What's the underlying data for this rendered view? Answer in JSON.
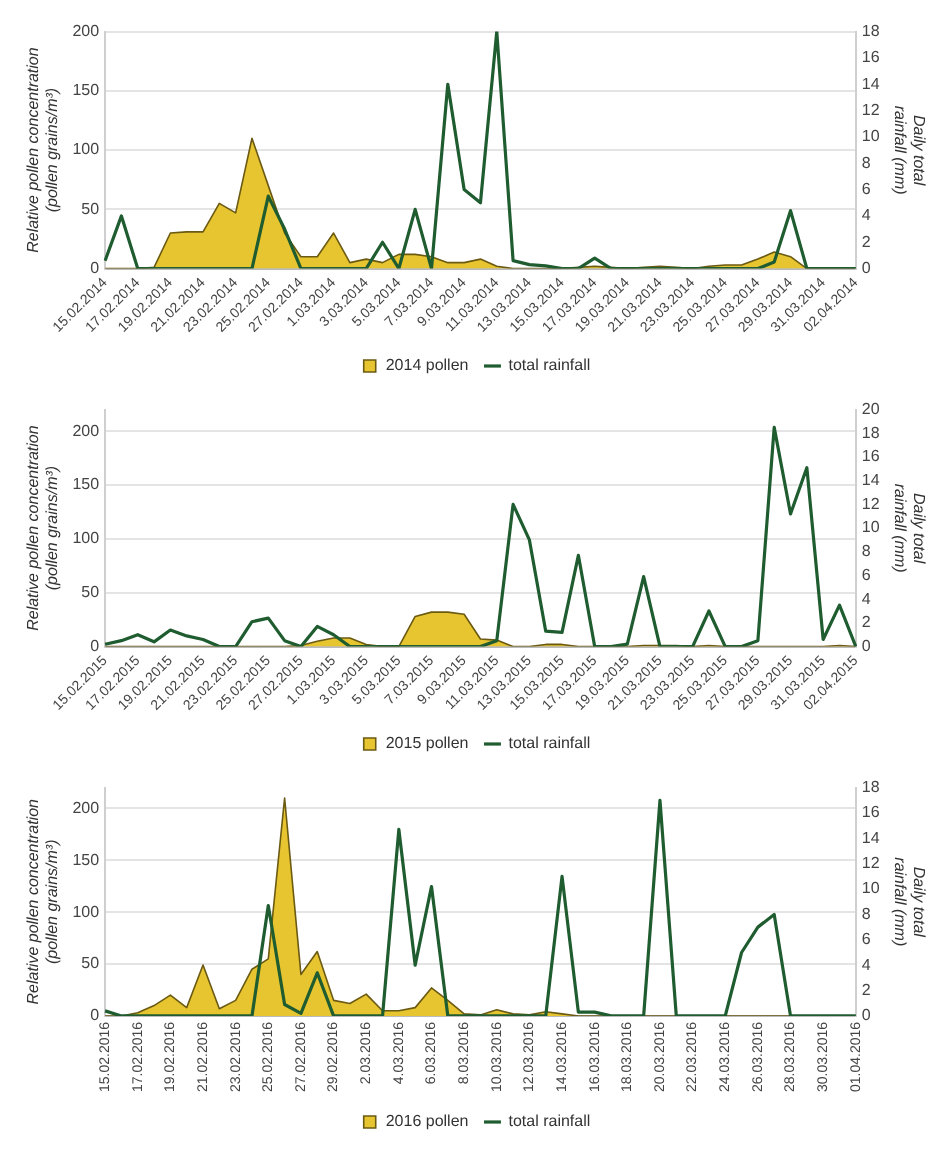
{
  "chart_data": [
    {
      "type": "area",
      "categories": [
        "15.02.2014",
        null,
        "17.02.2014",
        null,
        "19.02.2014",
        null,
        "21.02.2014",
        null,
        "23.02.2014",
        null,
        "25.02.2014",
        null,
        "27.02.2014",
        null,
        "1.03.2014",
        null,
        "3.03.2014",
        null,
        "5.03.2014",
        null,
        "7.03.2014",
        null,
        "9.03.2014",
        null,
        "11.03.2014",
        null,
        "13.03.2014",
        null,
        "15.03.2014",
        null,
        "17.03.2014",
        null,
        "19.03.2014",
        null,
        "21.03.2014",
        null,
        "23.03.2014",
        null,
        "25.03.2014",
        null,
        "27.03.2014",
        null,
        "29.03.2014",
        null,
        "31.03.2014",
        null,
        "02.04.2014"
      ],
      "series": [
        {
          "name": "2014 pollen",
          "color": "#e6c531",
          "values": [
            0,
            0,
            0,
            1,
            30,
            31,
            31,
            55,
            47,
            110,
            70,
            30,
            10,
            10,
            30,
            5,
            8,
            5,
            12,
            12,
            10,
            5,
            5,
            8,
            2,
            0,
            0,
            0,
            0,
            1,
            2,
            1,
            0,
            1,
            2,
            1,
            0,
            2,
            3,
            3,
            8,
            14,
            10,
            0,
            0,
            0,
            0
          ]
        },
        {
          "name": "total rainfall",
          "type": "line",
          "axis": "y2",
          "color": "#1f5c30",
          "values": [
            0.6,
            4,
            0,
            0,
            0,
            0,
            0,
            0,
            0,
            0,
            5.5,
            3,
            0,
            0,
            0,
            0,
            0,
            2,
            0,
            4.5,
            0,
            14,
            6,
            5,
            18,
            0.6,
            0.3,
            0.2,
            0,
            0,
            0.8,
            0,
            0,
            0,
            0,
            0,
            0,
            0,
            0,
            0,
            0,
            0.5,
            4.4,
            0,
            0,
            0,
            0
          ]
        }
      ],
      "ylabel": "Relative pollen concentration (pollen grains/m³)",
      "y2label": "Daily total rainfall (mm)",
      "ylim": [
        0,
        200
      ],
      "yticks": [
        0,
        50,
        100,
        150,
        200
      ],
      "y2lim": [
        0,
        18
      ],
      "y2ticks": [
        0,
        2,
        4,
        6,
        8,
        10,
        12,
        14,
        16,
        18
      ],
      "grid": "y",
      "legend": "bottom",
      "marker": "none"
    },
    {
      "type": "area",
      "categories": [
        "15.02.2015",
        null,
        "17.02.2015",
        null,
        "19.02.2015",
        null,
        "21.02.2015",
        null,
        "23.02.2015",
        null,
        "25.02.2015",
        null,
        "27.02.2015",
        null,
        "1.03.2015",
        null,
        "3.03.2015",
        null,
        "5.03.2015",
        null,
        "7.03.2015",
        null,
        "9.03.2015",
        null,
        "11.03.2015",
        null,
        "13.03.2015",
        null,
        "15.03.2015",
        null,
        "17.03.2015",
        null,
        "19.03.2015",
        null,
        "21.03.2015",
        null,
        "23.03.2015",
        null,
        "25.03.2015",
        null,
        "27.03.2015",
        null,
        "29.03.2015",
        null,
        "31.03.2015",
        null,
        "02.04.2015"
      ],
      "series": [
        {
          "name": "2015 pollen",
          "color": "#e6c531",
          "values": [
            0,
            0,
            0,
            0,
            0,
            0,
            0,
            0,
            0,
            0,
            0,
            0,
            1,
            5,
            8,
            8,
            2,
            0,
            0,
            28,
            32,
            32,
            30,
            7,
            6,
            0,
            0,
            2,
            2,
            0,
            0,
            0,
            0,
            1,
            1,
            1,
            0,
            1,
            0,
            0,
            0,
            0,
            0,
            0,
            0,
            1,
            0
          ]
        },
        {
          "name": "total rainfall",
          "type": "line",
          "axis": "y2",
          "color": "#1f5c30",
          "values": [
            0.2,
            0.5,
            1,
            0.4,
            1.4,
            0.9,
            0.6,
            0,
            0,
            2.1,
            2.4,
            0.5,
            0,
            1.7,
            1,
            0,
            0,
            0,
            0,
            0,
            0,
            0,
            0,
            0,
            0.5,
            12,
            9,
            1.3,
            1.2,
            7.7,
            0,
            0,
            0.2,
            5.9,
            0,
            0,
            0,
            3,
            0,
            0,
            0.5,
            18.5,
            11.2,
            15.1,
            0.6,
            3.5,
            0
          ]
        }
      ],
      "ylabel": "Relative pollen concentration (pollen grains/m³)",
      "y2label": "Daily total rainfall (mm)",
      "ylim": [
        0,
        220
      ],
      "yticks": [
        0,
        50,
        100,
        150,
        200
      ],
      "y2lim": [
        0,
        20
      ],
      "y2ticks": [
        0,
        2,
        4,
        6,
        8,
        10,
        12,
        14,
        16,
        18,
        20
      ],
      "grid": "y",
      "legend": "bottom",
      "marker": "none"
    },
    {
      "type": "area",
      "categories": [
        "15.02.2016",
        null,
        "17.02.2016",
        null,
        "19.02.2016",
        null,
        "21.02.2016",
        null,
        "23.02.2016",
        null,
        "25.02.2016",
        null,
        "27.02.2016",
        null,
        "29.02.2016",
        null,
        "2.03.2016",
        null,
        "4.03.2016",
        null,
        "6.03.2016",
        null,
        "8.03.2016",
        null,
        "10.03.2016",
        null,
        "12.03.2016",
        null,
        "14.03.2016",
        null,
        "16.03.2016",
        null,
        "18.03.2016",
        null,
        "20.03.2016",
        null,
        "22.03.2016",
        null,
        "24.03.2016",
        null,
        "26.03.2016",
        null,
        "28.03.2016",
        null,
        "30.03.2016",
        null,
        "01.04.2016"
      ],
      "series": [
        {
          "name": "2016 pollen",
          "color": "#e6c531",
          "values": [
            0,
            0,
            3,
            10,
            20,
            8,
            49,
            7,
            15,
            45,
            55,
            210,
            40,
            62,
            15,
            12,
            21,
            5,
            5,
            8,
            27,
            15,
            2,
            1,
            6,
            2,
            1,
            4,
            2,
            0,
            0,
            0,
            0,
            0,
            0,
            0,
            0,
            0,
            0,
            0,
            0,
            0,
            0,
            0,
            0,
            0,
            0
          ]
        },
        {
          "name": "total rainfall",
          "type": "line",
          "axis": "y2",
          "color": "#1f5c30",
          "values": [
            0.4,
            0,
            0,
            0,
            0,
            0,
            0,
            0,
            0,
            0,
            8.7,
            0.9,
            0.2,
            3.4,
            0,
            0,
            0,
            0,
            14.7,
            4,
            10.2,
            0,
            0,
            0,
            0,
            0,
            0,
            0,
            11,
            0.3,
            0.3,
            0,
            0,
            0,
            17,
            0,
            0,
            0,
            0,
            5,
            7,
            8,
            0,
            0,
            0,
            0,
            0
          ]
        }
      ],
      "ylabel": "Relative pollen concentration (pollen grains/m³)",
      "y2label": "Daily total rainfall (mm)",
      "ylim": [
        0,
        220
      ],
      "yticks": [
        0,
        50,
        100,
        150,
        200
      ],
      "y2lim": [
        0,
        18
      ],
      "y2ticks": [
        0,
        2,
        4,
        6,
        8,
        10,
        12,
        14,
        16,
        18
      ],
      "grid": "y",
      "legend": "bottom",
      "marker": "none"
    }
  ]
}
